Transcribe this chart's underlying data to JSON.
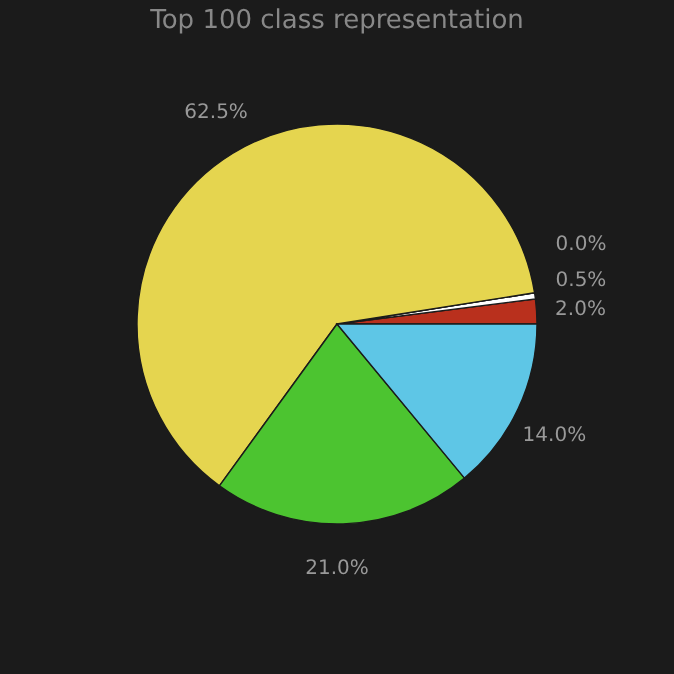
{
  "chart_data": {
    "type": "pie",
    "title": "Top 100 class representation",
    "categories": [
      null,
      null,
      null,
      null,
      null,
      null
    ],
    "values": [
      2.0,
      0.5,
      0.0,
      62.5,
      21.0,
      14.0
    ],
    "colors": [
      "#b9301d",
      "#ffffff",
      "#888888",
      "#e5d54f",
      "#4cc430",
      "#5ec6e6"
    ],
    "value_labels": [
      "2.0%",
      "0.5%",
      "0.0%",
      "62.5%",
      "21.0%",
      "14.0%"
    ],
    "legend": false
  }
}
